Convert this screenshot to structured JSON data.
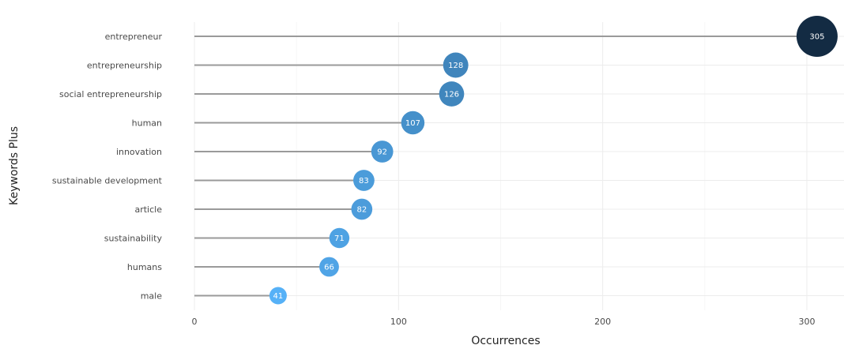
{
  "chart_data": {
    "type": "lollipop",
    "xlabel": "Occurrences",
    "ylabel": "Keywords Plus",
    "xlim": [
      0,
      320
    ],
    "xticks": [
      0,
      100,
      200,
      300
    ],
    "grid": true,
    "categories": [
      "entrepreneur",
      "entrepreneurship",
      "social entrepreneurship",
      "human",
      "innovation",
      "sustainable development",
      "article",
      "sustainability",
      "humans",
      "male"
    ],
    "values": [
      305,
      128,
      126,
      107,
      92,
      83,
      82,
      71,
      66,
      41
    ],
    "color_low": "#56b1f7",
    "color_high": "#132b43"
  }
}
